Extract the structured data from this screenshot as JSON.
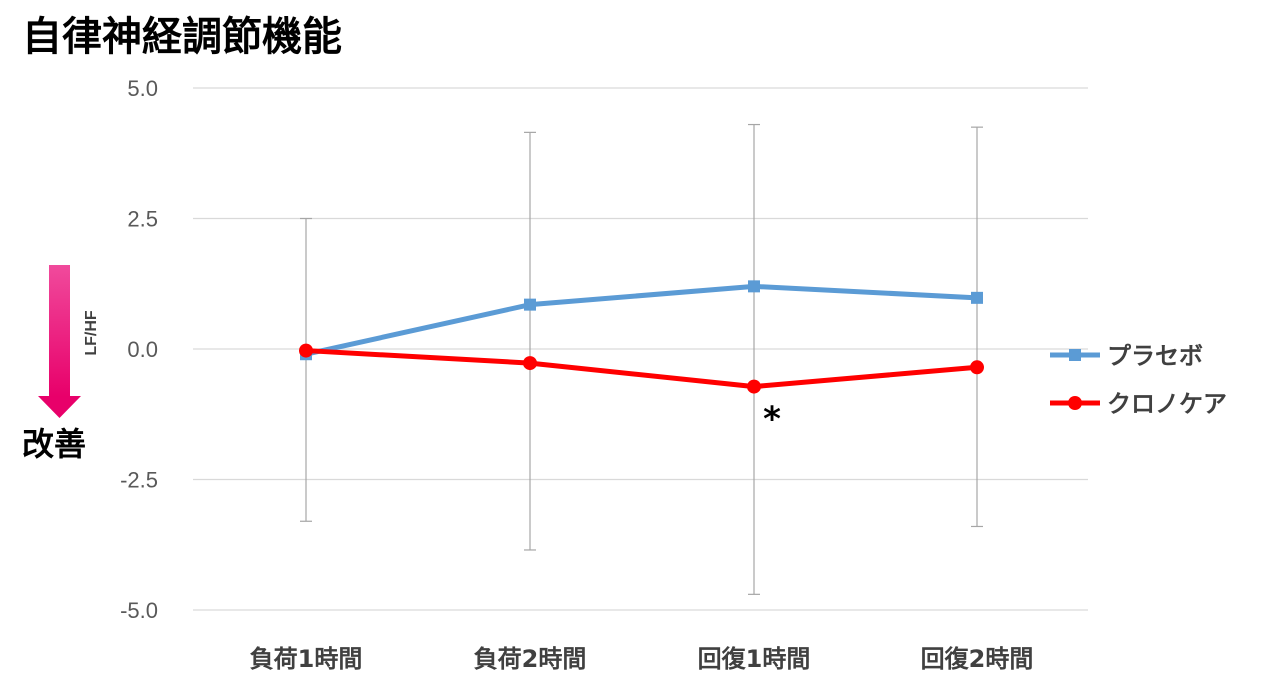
{
  "chart_data": {
    "type": "line",
    "title": "自律神経調節機能",
    "ylabel": "LF/HF",
    "annotation_left": "改善",
    "ylim": [
      -5.0,
      5.0
    ],
    "yticks": [
      "5.0",
      "2.5",
      "0.0",
      "-2.5",
      "-5.0"
    ],
    "ytick_values": [
      5.0,
      2.5,
      0.0,
      -2.5,
      -5.0
    ],
    "categories": [
      "負荷1時間",
      "負荷2時間",
      "回復1時間",
      "回復2時間"
    ],
    "series": [
      {
        "name": "プラセボ",
        "color": "#5b9bd5",
        "marker": "square",
        "values": [
          -0.1,
          0.85,
          1.2,
          0.98
        ],
        "err_low": [
          -3.3,
          -3.85,
          -4.7,
          -3.4
        ],
        "err_high": [
          2.5,
          4.15,
          4.3,
          4.25
        ]
      },
      {
        "name": "クロノケア",
        "color": "#ff0000",
        "marker": "circle",
        "values": [
          -0.03,
          -0.27,
          -0.72,
          -0.35
        ]
      }
    ],
    "significance": [
      {
        "category_index": 2,
        "label": "*"
      }
    ],
    "grid": true,
    "legend_position": "right"
  }
}
